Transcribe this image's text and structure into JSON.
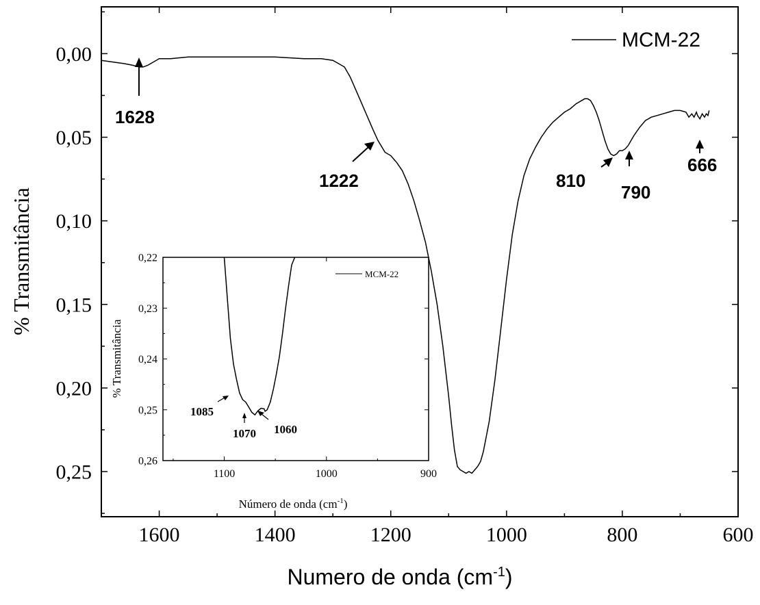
{
  "chart_data": [
    {
      "type": "line",
      "xlabel_main": "Numero de onda (cm",
      "xlabel_sup": "-1",
      "xlabel_close": ")",
      "ylabel": "% Transmitância",
      "xlim": [
        1700,
        600
      ],
      "ylim": [
        -0.028,
        0.277
      ],
      "x_ticks": [
        1600,
        1400,
        1200,
        1000,
        800,
        600
      ],
      "x_tick_labels": [
        "1600",
        "1400",
        "1200",
        "1000",
        "800",
        "600"
      ],
      "y_ticks": [
        0.0,
        0.05,
        0.1,
        0.15,
        0.2,
        0.25
      ],
      "y_tick_labels": [
        "0,00",
        "0,05",
        "0,10",
        "0,15",
        "0,20",
        "0,25"
      ],
      "legend": "top-right",
      "series": [
        {
          "name": "MCM-22",
          "x": [
            1700,
            1680,
            1660,
            1645,
            1635,
            1628,
            1620,
            1610,
            1600,
            1580,
            1550,
            1500,
            1450,
            1400,
            1350,
            1320,
            1300,
            1290,
            1280,
            1270,
            1260,
            1250,
            1240,
            1230,
            1222,
            1215,
            1210,
            1200,
            1190,
            1180,
            1170,
            1160,
            1150,
            1140,
            1130,
            1120,
            1110,
            1100,
            1095,
            1090,
            1085,
            1080,
            1075,
            1070,
            1065,
            1060,
            1055,
            1050,
            1045,
            1040,
            1030,
            1020,
            1010,
            1000,
            990,
            980,
            970,
            960,
            950,
            940,
            930,
            920,
            910,
            900,
            890,
            880,
            870,
            865,
            860,
            855,
            850,
            845,
            840,
            835,
            830,
            825,
            820,
            815,
            810,
            805,
            800,
            795,
            790,
            785,
            780,
            770,
            760,
            750,
            740,
            730,
            720,
            710,
            700,
            690,
            685,
            680,
            676,
            672,
            670,
            666,
            662,
            658,
            655,
            652,
            650
          ],
          "y": [
            0.004,
            0.005,
            0.006,
            0.007,
            0.008,
            0.008,
            0.007,
            0.005,
            0.003,
            0.003,
            0.002,
            0.002,
            0.002,
            0.002,
            0.003,
            0.003,
            0.004,
            0.006,
            0.008,
            0.014,
            0.022,
            0.03,
            0.038,
            0.046,
            0.052,
            0.056,
            0.059,
            0.061,
            0.065,
            0.07,
            0.078,
            0.088,
            0.1,
            0.113,
            0.13,
            0.15,
            0.175,
            0.205,
            0.222,
            0.237,
            0.247,
            0.249,
            0.25,
            0.251,
            0.25,
            0.251,
            0.249,
            0.247,
            0.244,
            0.238,
            0.22,
            0.195,
            0.165,
            0.135,
            0.108,
            0.088,
            0.073,
            0.063,
            0.056,
            0.05,
            0.045,
            0.041,
            0.038,
            0.035,
            0.033,
            0.03,
            0.028,
            0.027,
            0.027,
            0.028,
            0.031,
            0.035,
            0.04,
            0.046,
            0.052,
            0.057,
            0.06,
            0.061,
            0.06,
            0.058,
            0.058,
            0.057,
            0.055,
            0.052,
            0.049,
            0.044,
            0.04,
            0.038,
            0.037,
            0.036,
            0.035,
            0.034,
            0.034,
            0.035,
            0.038,
            0.036,
            0.038,
            0.035,
            0.037,
            0.039,
            0.036,
            0.038,
            0.036,
            0.037,
            0.034
          ]
        }
      ],
      "annotations": [
        "1628",
        "1222",
        "810",
        "790",
        "666"
      ]
    },
    {
      "type": "line",
      "xlabel_main": "Número de onda (cm",
      "xlabel_sup": "-1",
      "xlabel_close": ")",
      "ylabel": "% Transmitância",
      "xlim": [
        1160,
        900
      ],
      "ylim": [
        0.22,
        0.26
      ],
      "x_ticks": [
        1100,
        1000,
        900
      ],
      "x_tick_labels": [
        "1100",
        "1000",
        "900"
      ],
      "y_ticks": [
        0.22,
        0.23,
        0.24,
        0.25,
        0.26
      ],
      "y_tick_labels": [
        "0,22",
        "0,23",
        "0,24",
        "0,25",
        "0,26"
      ],
      "legend": "top-right",
      "series": [
        {
          "name": "MCM-22",
          "x": [
            1100,
            1097,
            1094,
            1091,
            1088,
            1085,
            1082,
            1079,
            1076,
            1073,
            1070,
            1067,
            1064,
            1061,
            1060,
            1058,
            1055,
            1052,
            1049,
            1046,
            1043,
            1040,
            1037,
            1034,
            1031
          ],
          "y": [
            0.22,
            0.228,
            0.236,
            0.241,
            0.244,
            0.2467,
            0.248,
            0.2485,
            0.2495,
            0.2505,
            0.251,
            0.2502,
            0.2497,
            0.2498,
            0.2503,
            0.25,
            0.2485,
            0.246,
            0.243,
            0.2395,
            0.235,
            0.23,
            0.2255,
            0.2215,
            0.22
          ]
        }
      ],
      "annotations": [
        "1085",
        "1070",
        "1060"
      ]
    }
  ]
}
